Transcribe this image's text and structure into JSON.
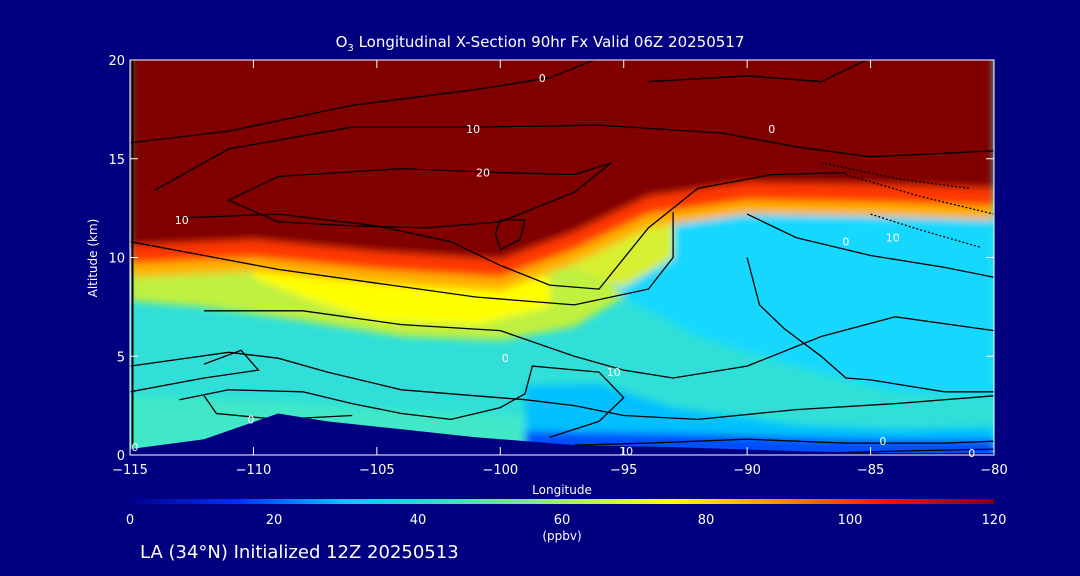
{
  "chart_data": {
    "type": "heatmap",
    "title_prefix": "O",
    "title_sub": "3",
    "title_rest": " Longitudinal X-Section 90hr  Fx Valid 06Z 20250517",
    "xlabel": "Longitude",
    "ylabel": "Altitude (km)",
    "xlim": [
      -115,
      -80
    ],
    "ylim": [
      0,
      20
    ],
    "xticks": [
      -115,
      -110,
      -105,
      -100,
      -95,
      -90,
      -85,
      -80
    ],
    "xtick_labels": [
      "−115",
      "−110",
      "−105",
      "−100",
      "−95",
      "−90",
      "−85",
      "−80"
    ],
    "yticks": [
      0,
      5,
      10,
      15,
      20
    ],
    "ytick_labels": [
      "0",
      "5",
      "10",
      "15",
      "20"
    ],
    "grid": false,
    "colorbar": {
      "label": "(ppbv)",
      "range": [
        0,
        120
      ],
      "ticks": [
        0,
        20,
        40,
        60,
        80,
        100,
        120
      ],
      "tick_labels": [
        "0",
        "20",
        "40",
        "60",
        "80",
        "100",
        "120"
      ],
      "colors": [
        "#00008c",
        "#0030ff",
        "#00c8ff",
        "#40e0c0",
        "#a0f060",
        "#ffff00",
        "#ff9000",
        "#ff1000",
        "#800000"
      ]
    },
    "background_color": "#000080",
    "fields": {
      "tropopause_km": [
        [
          -115,
          10.6
        ],
        [
          -110,
          10.9
        ],
        [
          -105,
          10.3
        ],
        [
          -100,
          9.9
        ],
        [
          -97,
          11.3
        ],
        [
          -94,
          13.1
        ],
        [
          -90,
          13.8
        ],
        [
          -85,
          13.7
        ],
        [
          -80,
          13.5
        ]
      ],
      "terrain_km": [
        [
          -115,
          0.3
        ],
        [
          -112,
          0.8
        ],
        [
          -109,
          2.1
        ],
        [
          -107,
          1.7
        ],
        [
          -104,
          1.3
        ],
        [
          -101,
          0.9
        ],
        [
          -97,
          0.5
        ],
        [
          -93,
          0.4
        ],
        [
          -88,
          0.2
        ],
        [
          -84,
          0.1
        ],
        [
          -80,
          0.1
        ]
      ],
      "boundary_layer_km": [
        [
          -115,
          0.1
        ],
        [
          -100,
          0.8
        ],
        [
          -95,
          0.6
        ],
        [
          -90,
          0.9
        ],
        [
          -85,
          1.1
        ],
        [
          -80,
          1.0
        ]
      ]
    },
    "contour_labels": [
      {
        "text": "0",
        "x": -98.3,
        "y": 19.1
      },
      {
        "text": "10",
        "x": -101.1,
        "y": 16.5
      },
      {
        "text": "20",
        "x": -100.7,
        "y": 14.3
      },
      {
        "text": "10",
        "x": -112.9,
        "y": 11.9
      },
      {
        "text": "0",
        "x": -89.0,
        "y": 16.5
      },
      {
        "text": "0",
        "x": -86.0,
        "y": 10.8
      },
      {
        "text": "10",
        "x": -84.1,
        "y": 11.0
      },
      {
        "text": "0",
        "x": -99.8,
        "y": 4.9
      },
      {
        "text": "10",
        "x": -95.4,
        "y": 4.2
      },
      {
        "text": "0",
        "x": -110.1,
        "y": 1.8
      },
      {
        "text": "10",
        "x": -94.9,
        "y": 0.2
      },
      {
        "text": "0",
        "x": -84.5,
        "y": 0.7
      },
      {
        "text": "0",
        "x": -80.9,
        "y": 0.1
      },
      {
        "text": "0",
        "x": -114.8,
        "y": 0.4
      }
    ]
  },
  "footer": "LA (34°N) Initialized 12Z 20250513"
}
